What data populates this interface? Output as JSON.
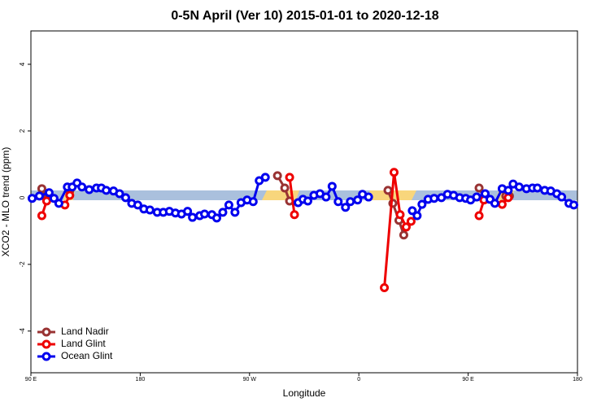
{
  "chart_data": {
    "type": "line",
    "title": "0-5N April (Ver 10)   2015-01-01 to 2020-12-18",
    "x_label": "Longitude",
    "y_label": "XCO2 - MLO trend (ppm)",
    "xlim": [
      90,
      540
    ],
    "xticks": [
      {
        "value": 90,
        "label": "90 E"
      },
      {
        "value": 180,
        "label": "180"
      },
      {
        "value": 270,
        "label": "90 W"
      },
      {
        "value": 360,
        "label": "0"
      },
      {
        "value": 450,
        "label": "90 E"
      },
      {
        "value": 540,
        "label": "180"
      }
    ],
    "ylim": [
      -5.25,
      5
    ],
    "yticks": [
      -4,
      -2,
      0,
      2,
      4
    ],
    "legend": "bottom-left",
    "series": [
      {
        "name": "Land Nadir",
        "color": "#993333",
        "x": [
          99,
          103,
          null,
          122,
          null,
          293,
          299,
          303,
          null,
          384,
          388,
          393,
          397,
          null,
          459,
          464,
          null,
          481,
          484
        ],
        "values": [
          0.27,
          -0.05,
          null,
          0.2,
          null,
          0.66,
          0.29,
          -0.1,
          null,
          0.22,
          -0.17,
          -0.68,
          -1.12,
          null,
          0.29,
          -0.05,
          null,
          0.05,
          0.05
        ]
      },
      {
        "name": "Land Glint",
        "color": "#ee0000",
        "x": [
          99,
          103,
          null,
          118,
          122,
          null,
          303,
          307,
          null,
          381,
          389,
          394,
          399,
          403,
          null,
          459,
          463,
          null,
          478,
          483
        ],
        "values": [
          -0.54,
          -0.1,
          null,
          -0.22,
          0.07,
          null,
          0.61,
          -0.51,
          null,
          -2.7,
          0.76,
          -0.51,
          -0.88,
          -0.71,
          null,
          -0.54,
          -0.07,
          null,
          -0.2,
          0
        ]
      },
      {
        "name": "Ocean Glint",
        "color": "#0000ee",
        "x": [
          91,
          97,
          105,
          109,
          113,
          120,
          124,
          128,
          132,
          138,
          144,
          148,
          152,
          158,
          163,
          168,
          173,
          178,
          183,
          188,
          194,
          199,
          204,
          209,
          214,
          219,
          223,
          229,
          233,
          239,
          243,
          248,
          253,
          258,
          263,
          268,
          273,
          278,
          283,
          null,
          310,
          314,
          318,
          323,
          328,
          333,
          338,
          343,
          349,
          353,
          359,
          363,
          368,
          null,
          404,
          408,
          412,
          417,
          422,
          428,
          433,
          438,
          443,
          448,
          452,
          457,
          464,
          468,
          472,
          478,
          483,
          487,
          492,
          498,
          503,
          507,
          513,
          518,
          523,
          527,
          533,
          537
        ],
        "values": [
          -0.02,
          0.05,
          0.15,
          -0.02,
          -0.17,
          0.32,
          0.32,
          0.44,
          0.32,
          0.24,
          0.29,
          0.29,
          0.22,
          0.2,
          0.12,
          0,
          -0.17,
          -0.22,
          -0.34,
          -0.37,
          -0.44,
          -0.44,
          -0.41,
          -0.46,
          -0.49,
          -0.41,
          -0.59,
          -0.54,
          -0.49,
          -0.51,
          -0.61,
          -0.44,
          -0.22,
          -0.44,
          -0.15,
          -0.07,
          -0.12,
          0.51,
          0.61,
          null,
          -0.15,
          -0.05,
          -0.1,
          0.07,
          0.12,
          0.02,
          0.34,
          -0.12,
          -0.29,
          -0.12,
          -0.07,
          0.1,
          0.02,
          null,
          -0.39,
          -0.54,
          -0.2,
          -0.05,
          -0.02,
          0,
          0.1,
          0.07,
          0,
          -0.02,
          -0.07,
          0.02,
          0.12,
          -0.05,
          -0.17,
          0.27,
          0.22,
          0.41,
          0.32,
          0.27,
          0.29,
          0.29,
          0.22,
          0.2,
          0.12,
          0.02,
          -0.17,
          -0.22
        ]
      }
    ]
  }
}
